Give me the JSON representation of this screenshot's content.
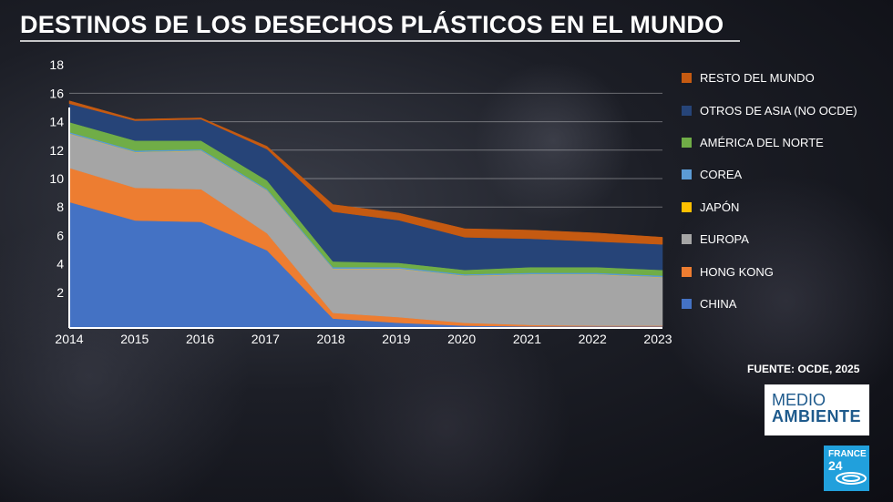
{
  "chart_data": {
    "type": "area",
    "stacked": true,
    "title": "DESTINOS DE LOS DESECHOS PLÁSTICOS EN EL MUNDO",
    "x": [
      "2014",
      "2015",
      "2016",
      "2017",
      "2018",
      "2019",
      "2020",
      "2021",
      "2022",
      "2023"
    ],
    "ylim": [
      0,
      18
    ],
    "yticks": [
      2,
      4,
      6,
      8,
      10,
      12,
      14,
      16,
      18
    ],
    "grid": true,
    "legend_position": "right",
    "series": [
      {
        "name": "CHINA",
        "color": "#4472c4",
        "values": [
          8.8,
          7.5,
          7.4,
          5.4,
          0.6,
          0.3,
          0.1,
          0.05,
          0.05,
          0.05
        ]
      },
      {
        "name": "HONG KONG",
        "color": "#ed7d31",
        "values": [
          2.4,
          2.3,
          2.3,
          1.2,
          0.4,
          0.4,
          0.2,
          0.1,
          0.05,
          0.05
        ]
      },
      {
        "name": "EUROPA",
        "color": "#a5a5a5",
        "values": [
          2.4,
          2.5,
          2.7,
          3.0,
          3.1,
          3.4,
          3.3,
          3.55,
          3.6,
          3.4
        ]
      },
      {
        "name": "JAPÓN",
        "color": "#ffc000",
        "values": [
          0.02,
          0.02,
          0.02,
          0.02,
          0.02,
          0.02,
          0.02,
          0.02,
          0.02,
          0.02
        ]
      },
      {
        "name": "COREA",
        "color": "#5b9bd5",
        "values": [
          0.1,
          0.1,
          0.1,
          0.1,
          0.1,
          0.1,
          0.1,
          0.1,
          0.1,
          0.1
        ]
      },
      {
        "name": "AMÉRICA DEL NORTE",
        "color": "#70ad47",
        "values": [
          0.7,
          0.7,
          0.6,
          0.6,
          0.4,
          0.3,
          0.3,
          0.4,
          0.4,
          0.4
        ]
      },
      {
        "name": "OTROS DE ASIA (NO OCDE)",
        "color": "#264478",
        "values": [
          1.3,
          1.4,
          1.5,
          2.2,
          3.5,
          3.0,
          2.3,
          2.0,
          1.8,
          1.8
        ]
      },
      {
        "name": "RESTO DEL MUNDO",
        "color": "#c55a11",
        "values": [
          0.2,
          0.1,
          0.1,
          0.2,
          0.5,
          0.5,
          0.6,
          0.6,
          0.6,
          0.5
        ]
      }
    ],
    "legend_order": [
      "RESTO DEL MUNDO",
      "OTROS DE ASIA (NO OCDE)",
      "AMÉRICA DEL NORTE",
      "COREA",
      "JAPÓN",
      "EUROPA",
      "HONG KONG",
      "CHINA"
    ]
  },
  "source": "FUENTE: OCDE, 2025",
  "program": {
    "line1": "MEDIO",
    "line2": "AMBIENTE"
  },
  "channel": {
    "line1": "FRANCE",
    "line2": "24"
  }
}
